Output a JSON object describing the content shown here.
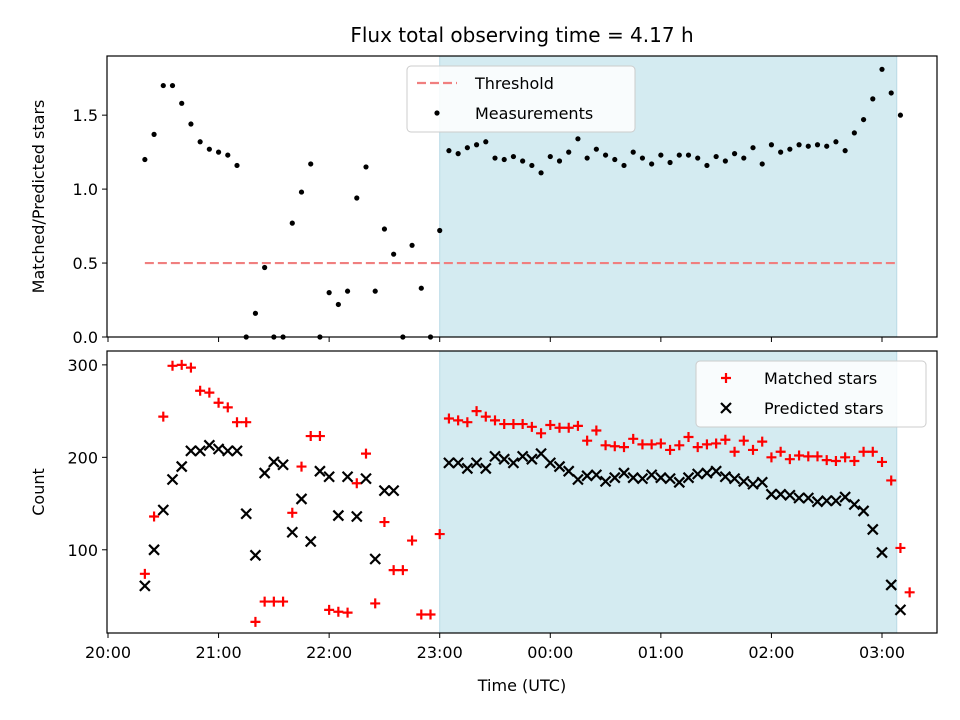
{
  "chart_data": [
    {
      "type": "scatter",
      "title": "Flux total observing time = 4.17 h",
      "xlabel": "",
      "ylabel": "Matched/Predicted stars",
      "ylim": [
        0,
        1.9
      ],
      "yticks": [
        "0.0",
        "0.5",
        "1.0",
        "1.5"
      ],
      "grid": false,
      "legend_position": "top-center",
      "shaded_interval": [
        "23:00",
        "03:08"
      ],
      "shade_color": "#d4ebf1",
      "series": [
        {
          "name": "Threshold",
          "kind": "line",
          "style": "dashed",
          "color": "#f07f7f",
          "x_range": [
            "20:20",
            "03:08"
          ],
          "value": 0.5
        },
        {
          "name": "Measurements",
          "kind": "scatter",
          "marker": "dot",
          "color": "#000000",
          "points": [
            [
              "20:20",
              1.2
            ],
            [
              "20:25",
              1.37
            ],
            [
              "20:30",
              1.7
            ],
            [
              "20:35",
              1.7
            ],
            [
              "20:40",
              1.58
            ],
            [
              "20:45",
              1.44
            ],
            [
              "20:50",
              1.32
            ],
            [
              "20:55",
              1.27
            ],
            [
              "21:00",
              1.25
            ],
            [
              "21:05",
              1.23
            ],
            [
              "21:10",
              1.16
            ],
            [
              "21:15",
              0.0
            ],
            [
              "21:20",
              0.16
            ],
            [
              "21:25",
              0.47
            ],
            [
              "21:30",
              0.0
            ],
            [
              "21:35",
              0.0
            ],
            [
              "21:40",
              0.77
            ],
            [
              "21:45",
              0.98
            ],
            [
              "21:50",
              1.17
            ],
            [
              "21:55",
              0.0
            ],
            [
              "22:00",
              0.3
            ],
            [
              "22:05",
              0.22
            ],
            [
              "22:10",
              0.31
            ],
            [
              "22:15",
              0.94
            ],
            [
              "22:20",
              1.15
            ],
            [
              "22:25",
              0.31
            ],
            [
              "22:30",
              0.73
            ],
            [
              "22:35",
              0.56
            ],
            [
              "22:40",
              0.0
            ],
            [
              "22:45",
              0.62
            ],
            [
              "22:50",
              0.33
            ],
            [
              "22:55",
              0.0
            ],
            [
              "23:00",
              0.72
            ],
            [
              "23:05",
              1.26
            ],
            [
              "23:10",
              1.24
            ],
            [
              "23:15",
              1.28
            ],
            [
              "23:20",
              1.3
            ],
            [
              "23:25",
              1.32
            ],
            [
              "23:30",
              1.21
            ],
            [
              "23:35",
              1.2
            ],
            [
              "23:40",
              1.22
            ],
            [
              "23:45",
              1.19
            ],
            [
              "23:50",
              1.16
            ],
            [
              "23:55",
              1.11
            ],
            [
              "00:00",
              1.22
            ],
            [
              "00:05",
              1.19
            ],
            [
              "00:10",
              1.25
            ],
            [
              "00:15",
              1.34
            ],
            [
              "00:20",
              1.21
            ],
            [
              "00:25",
              1.27
            ],
            [
              "00:30",
              1.23
            ],
            [
              "00:35",
              1.2
            ],
            [
              "00:40",
              1.16
            ],
            [
              "00:45",
              1.25
            ],
            [
              "00:50",
              1.21
            ],
            [
              "00:55",
              1.17
            ],
            [
              "01:00",
              1.23
            ],
            [
              "01:05",
              1.18
            ],
            [
              "01:10",
              1.23
            ],
            [
              "01:15",
              1.23
            ],
            [
              "01:20",
              1.21
            ],
            [
              "01:25",
              1.16
            ],
            [
              "01:30",
              1.22
            ],
            [
              "01:35",
              1.19
            ],
            [
              "01:40",
              1.24
            ],
            [
              "01:45",
              1.21
            ],
            [
              "01:50",
              1.28
            ],
            [
              "01:55",
              1.17
            ],
            [
              "02:00",
              1.3
            ],
            [
              "02:05",
              1.25
            ],
            [
              "02:10",
              1.27
            ],
            [
              "02:15",
              1.3
            ],
            [
              "02:20",
              1.29
            ],
            [
              "02:25",
              1.3
            ],
            [
              "02:30",
              1.29
            ],
            [
              "02:35",
              1.32
            ],
            [
              "02:40",
              1.26
            ],
            [
              "02:45",
              1.38
            ],
            [
              "02:50",
              1.47
            ],
            [
              "02:55",
              1.61
            ],
            [
              "03:00",
              1.81
            ],
            [
              "03:05",
              1.65
            ],
            [
              "03:10",
              1.5
            ]
          ]
        }
      ]
    },
    {
      "type": "scatter",
      "title": "",
      "xlabel": "Time (UTC)",
      "ylabel": "Count",
      "ylim": [
        10,
        315
      ],
      "yticks": [
        "100",
        "200",
        "300"
      ],
      "grid": false,
      "legend_position": "top-right",
      "shaded_interval": [
        "23:00",
        "03:08"
      ],
      "shade_color": "#d4ebf1",
      "x_range": [
        "20:00",
        "03:30"
      ],
      "xticks": [
        "20:00",
        "21:00",
        "22:00",
        "23:00",
        "00:00",
        "01:00",
        "02:00",
        "03:00"
      ],
      "series": [
        {
          "name": "Matched stars",
          "kind": "scatter",
          "marker": "plus",
          "color": "#ff0000",
          "points": [
            [
              "20:20",
              74
            ],
            [
              "20:25",
              136
            ],
            [
              "20:30",
              244
            ],
            [
              "20:35",
              299
            ],
            [
              "20:40",
              300
            ],
            [
              "20:45",
              297
            ],
            [
              "20:50",
              272
            ],
            [
              "20:55",
              270
            ],
            [
              "21:00",
              259
            ],
            [
              "21:05",
              254
            ],
            [
              "21:10",
              238
            ],
            [
              "21:15",
              238
            ],
            [
              "21:20",
              22
            ],
            [
              "21:25",
              44
            ],
            [
              "21:30",
              44
            ],
            [
              "21:35",
              44
            ],
            [
              "21:40",
              140
            ],
            [
              "21:45",
              190
            ],
            [
              "21:50",
              223
            ],
            [
              "21:55",
              223
            ],
            [
              "22:00",
              35
            ],
            [
              "22:05",
              33
            ],
            [
              "22:10",
              32
            ],
            [
              "22:15",
              172
            ],
            [
              "22:20",
              204
            ],
            [
              "22:25",
              42
            ],
            [
              "22:30",
              130
            ],
            [
              "22:35",
              78
            ],
            [
              "22:40",
              78
            ],
            [
              "22:45",
              110
            ],
            [
              "22:50",
              30
            ],
            [
              "22:55",
              30
            ],
            [
              "23:00",
              117
            ],
            [
              "23:05",
              242
            ],
            [
              "23:10",
              240
            ],
            [
              "23:15",
              238
            ],
            [
              "23:20",
              250
            ],
            [
              "23:25",
              244
            ],
            [
              "23:30",
              240
            ],
            [
              "23:35",
              236
            ],
            [
              "23:40",
              236
            ],
            [
              "23:45",
              236
            ],
            [
              "23:50",
              233
            ],
            [
              "23:55",
              226
            ],
            [
              "00:00",
              235
            ],
            [
              "00:05",
              232
            ],
            [
              "00:10",
              232
            ],
            [
              "00:15",
              234
            ],
            [
              "00:20",
              218
            ],
            [
              "00:25",
              229
            ],
            [
              "00:30",
              213
            ],
            [
              "00:35",
              212
            ],
            [
              "00:40",
              211
            ],
            [
              "00:45",
              220
            ],
            [
              "00:50",
              214
            ],
            [
              "00:55",
              214
            ],
            [
              "01:00",
              215
            ],
            [
              "01:05",
              208
            ],
            [
              "01:10",
              213
            ],
            [
              "01:15",
              222
            ],
            [
              "01:20",
              211
            ],
            [
              "01:25",
              214
            ],
            [
              "01:30",
              215
            ],
            [
              "01:35",
              219
            ],
            [
              "01:40",
              206
            ],
            [
              "01:45",
              218
            ],
            [
              "01:50",
              208
            ],
            [
              "01:55",
              217
            ],
            [
              "02:00",
              200
            ],
            [
              "02:05",
              206
            ],
            [
              "02:10",
              198
            ],
            [
              "02:15",
              202
            ],
            [
              "02:20",
              201
            ],
            [
              "02:25",
              201
            ],
            [
              "02:30",
              197
            ],
            [
              "02:35",
              196
            ],
            [
              "02:40",
              200
            ],
            [
              "02:45",
              196
            ],
            [
              "02:50",
              206
            ],
            [
              "02:55",
              206
            ],
            [
              "03:00",
              195
            ],
            [
              "03:05",
              175
            ],
            [
              "03:10",
              102
            ],
            [
              "03:15",
              54
            ]
          ]
        },
        {
          "name": "Predicted stars",
          "kind": "scatter",
          "marker": "x",
          "color": "#000000",
          "points": [
            [
              "20:20",
              61
            ],
            [
              "20:25",
              100
            ],
            [
              "20:30",
              143
            ],
            [
              "20:35",
              176
            ],
            [
              "20:40",
              190
            ],
            [
              "20:45",
              207
            ],
            [
              "20:50",
              207
            ],
            [
              "20:55",
              213
            ],
            [
              "21:00",
              209
            ],
            [
              "21:05",
              207
            ],
            [
              "21:10",
              207
            ],
            [
              "21:15",
              139
            ],
            [
              "21:20",
              94
            ],
            [
              "21:25",
              183
            ],
            [
              "21:30",
              195
            ],
            [
              "21:35",
              192
            ],
            [
              "21:40",
              119
            ],
            [
              "21:45",
              155
            ],
            [
              "21:50",
              109
            ],
            [
              "21:55",
              185
            ],
            [
              "22:00",
              179
            ],
            [
              "22:05",
              137
            ],
            [
              "22:10",
              179
            ],
            [
              "22:15",
              136
            ],
            [
              "22:20",
              177
            ],
            [
              "22:25",
              90
            ],
            [
              "22:30",
              164
            ],
            [
              "22:35",
              164
            ],
            [
              "23:05",
              194
            ],
            [
              "23:10",
              194
            ],
            [
              "23:15",
              188
            ],
            [
              "23:20",
              194
            ],
            [
              "23:25",
              188
            ],
            [
              "23:30",
              201
            ],
            [
              "23:35",
              198
            ],
            [
              "23:40",
              194
            ],
            [
              "23:45",
              201
            ],
            [
              "23:50",
              198
            ],
            [
              "23:55",
              204
            ],
            [
              "00:00",
              194
            ],
            [
              "00:05",
              190
            ],
            [
              "00:10",
              185
            ],
            [
              "00:15",
              176
            ],
            [
              "00:20",
              180
            ],
            [
              "00:25",
              181
            ],
            [
              "00:30",
              174
            ],
            [
              "00:35",
              178
            ],
            [
              "00:40",
              183
            ],
            [
              "00:45",
              178
            ],
            [
              "00:50",
              177
            ],
            [
              "00:55",
              181
            ],
            [
              "01:00",
              178
            ],
            [
              "01:05",
              177
            ],
            [
              "01:10",
              173
            ],
            [
              "01:15",
              178
            ],
            [
              "01:20",
              182
            ],
            [
              "01:25",
              183
            ],
            [
              "01:30",
              185
            ],
            [
              "01:35",
              179
            ],
            [
              "01:40",
              177
            ],
            [
              "01:45",
              174
            ],
            [
              "01:50",
              171
            ],
            [
              "01:55",
              173
            ],
            [
              "02:00",
              160
            ],
            [
              "02:05",
              160
            ],
            [
              "02:10",
              159
            ],
            [
              "02:15",
              156
            ],
            [
              "02:20",
              156
            ],
            [
              "02:25",
              152
            ],
            [
              "02:30",
              153
            ],
            [
              "02:35",
              153
            ],
            [
              "02:40",
              157
            ],
            [
              "02:45",
              149
            ],
            [
              "02:50",
              142
            ],
            [
              "02:55",
              122
            ],
            [
              "03:00",
              97
            ],
            [
              "03:05",
              62
            ],
            [
              "03:10",
              35
            ]
          ]
        }
      ]
    }
  ]
}
